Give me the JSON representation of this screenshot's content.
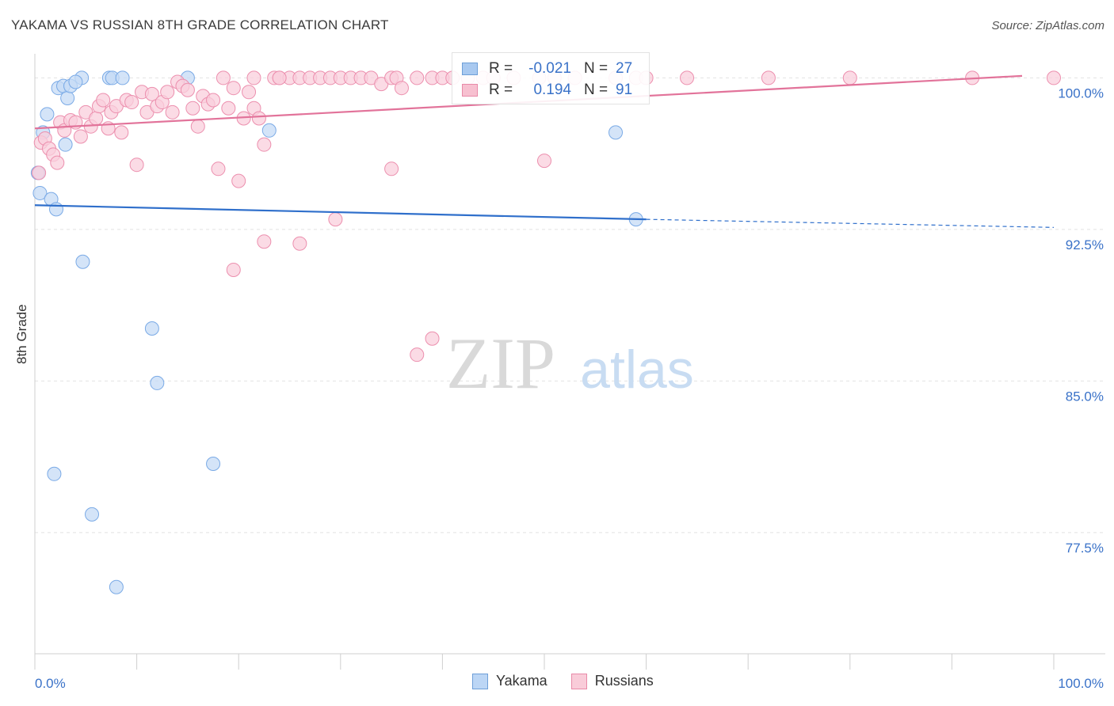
{
  "header": {
    "title": "YAKAMA VS RUSSIAN 8TH GRADE CORRELATION CHART",
    "source": "Source: ZipAtlas.com"
  },
  "watermark": {
    "zip": "ZIP",
    "atlas": "atlas"
  },
  "legend": {
    "rows": [
      {
        "r_label": "R =",
        "r_value": "-0.021",
        "n_label": "N =",
        "n_value": "27",
        "color": "#a9c9f0",
        "border": "#6e9fd8"
      },
      {
        "r_label": "R =",
        "r_value": "0.194",
        "n_label": "N =",
        "n_value": "91",
        "color": "#f7c0d0",
        "border": "#e88aa8"
      }
    ]
  },
  "bottom_legend": [
    {
      "label": "Yakama",
      "color": "#bcd6f5",
      "border": "#6e9fd8"
    },
    {
      "label": "Russians",
      "color": "#f9ccd9",
      "border": "#e88aa8"
    }
  ],
  "chart_data": {
    "type": "scatter",
    "title": "YAKAMA VS RUSSIAN 8TH GRADE CORRELATION CHART",
    "xlabel": "",
    "ylabel": "8th Grade",
    "xlim": [
      0,
      100
    ],
    "ylim": [
      71.5,
      100.8
    ],
    "x_tick_labels": [
      "0.0%",
      "100.0%"
    ],
    "y_ticks": [
      100.0,
      92.5,
      85.0,
      77.5
    ],
    "y_tick_labels": [
      "100.0%",
      "92.5%",
      "85.0%",
      "77.5%"
    ],
    "grid": true,
    "series": [
      {
        "name": "Yakama",
        "color": "#7aaae6",
        "fill": "#c5dbf6",
        "r": -0.021,
        "n": 27,
        "trend": {
          "x0": 0,
          "y0": 93.7,
          "x1": 60,
          "y1": 93.0,
          "dash_to": 100,
          "dash_y": 92.6
        },
        "points": [
          [
            0.3,
            95.3
          ],
          [
            0.5,
            94.3
          ],
          [
            0.8,
            97.3
          ],
          [
            1.2,
            98.2
          ],
          [
            1.6,
            94.0
          ],
          [
            2.1,
            93.5
          ],
          [
            2.3,
            99.5
          ],
          [
            2.8,
            99.6
          ],
          [
            3.2,
            99.0
          ],
          [
            3.5,
            99.6
          ],
          [
            3.0,
            96.7
          ],
          [
            4.6,
            100.0
          ],
          [
            7.3,
            100.0
          ],
          [
            7.6,
            100.0
          ],
          [
            8.6,
            100.0
          ],
          [
            15.0,
            100.0
          ],
          [
            23.0,
            97.4
          ],
          [
            57.0,
            97.3
          ],
          [
            59.0,
            93.0
          ],
          [
            4.7,
            90.9
          ],
          [
            11.5,
            87.6
          ],
          [
            12.0,
            84.9
          ],
          [
            1.9,
            80.4
          ],
          [
            17.5,
            80.9
          ],
          [
            5.6,
            78.4
          ],
          [
            8.0,
            74.8
          ],
          [
            4.0,
            99.8
          ]
        ]
      },
      {
        "name": "Russians",
        "color": "#ec8fae",
        "fill": "#f9cfdc",
        "r": 0.194,
        "n": 91,
        "trend": {
          "x0": 0,
          "y0": 97.5,
          "x1": 100,
          "y1": 100.1
        },
        "points": [
          [
            0.4,
            95.3
          ],
          [
            0.6,
            96.8
          ],
          [
            1.0,
            97.0
          ],
          [
            1.4,
            96.5
          ],
          [
            1.8,
            96.2
          ],
          [
            2.2,
            95.8
          ],
          [
            2.5,
            97.8
          ],
          [
            2.9,
            97.4
          ],
          [
            3.5,
            97.9
          ],
          [
            4.0,
            97.8
          ],
          [
            4.5,
            97.1
          ],
          [
            5.0,
            98.3
          ],
          [
            5.5,
            97.6
          ],
          [
            6.0,
            98.0
          ],
          [
            6.3,
            98.6
          ],
          [
            6.7,
            98.9
          ],
          [
            7.2,
            97.5
          ],
          [
            7.5,
            98.3
          ],
          [
            8.0,
            98.6
          ],
          [
            8.5,
            97.3
          ],
          [
            9.0,
            98.9
          ],
          [
            9.5,
            98.8
          ],
          [
            10.0,
            95.7
          ],
          [
            10.5,
            99.3
          ],
          [
            11.0,
            98.3
          ],
          [
            11.5,
            99.2
          ],
          [
            12.0,
            98.6
          ],
          [
            12.5,
            98.8
          ],
          [
            13.0,
            99.3
          ],
          [
            13.5,
            98.3
          ],
          [
            14.0,
            99.8
          ],
          [
            14.5,
            99.6
          ],
          [
            15.0,
            99.4
          ],
          [
            15.5,
            98.5
          ],
          [
            16.0,
            97.6
          ],
          [
            16.5,
            99.1
          ],
          [
            17.0,
            98.7
          ],
          [
            17.5,
            98.9
          ],
          [
            18.0,
            95.5
          ],
          [
            18.5,
            100.0
          ],
          [
            19.0,
            98.5
          ],
          [
            19.5,
            99.5
          ],
          [
            20.0,
            94.9
          ],
          [
            20.5,
            98.0
          ],
          [
            21.0,
            99.3
          ],
          [
            21.5,
            98.5
          ],
          [
            22.0,
            98.0
          ],
          [
            22.5,
            96.7
          ],
          [
            23.5,
            100.0
          ],
          [
            24.0,
            100.0
          ],
          [
            25.0,
            100.0
          ],
          [
            26.0,
            100.0
          ],
          [
            27.0,
            100.0
          ],
          [
            28.0,
            100.0
          ],
          [
            29.0,
            100.0
          ],
          [
            30.0,
            100.0
          ],
          [
            31.0,
            100.0
          ],
          [
            32.0,
            100.0
          ],
          [
            33.0,
            100.0
          ],
          [
            34.0,
            99.7
          ],
          [
            35.0,
            100.0
          ],
          [
            35.5,
            100.0
          ],
          [
            36.0,
            99.5
          ],
          [
            37.5,
            100.0
          ],
          [
            39.0,
            100.0
          ],
          [
            40.0,
            100.0
          ],
          [
            41.0,
            100.0
          ],
          [
            42.5,
            100.0
          ],
          [
            44.0,
            100.0
          ],
          [
            45.0,
            100.0
          ],
          [
            47.0,
            100.0
          ],
          [
            49.5,
            100.0
          ],
          [
            51.0,
            100.0
          ],
          [
            53.0,
            100.0
          ],
          [
            57.0,
            100.0
          ],
          [
            59.0,
            100.0
          ],
          [
            64.0,
            100.0
          ],
          [
            72.0,
            100.0
          ],
          [
            80.0,
            100.0
          ],
          [
            92.0,
            100.0
          ],
          [
            100.0,
            100.0
          ],
          [
            35.0,
            95.5
          ],
          [
            50.0,
            95.9
          ],
          [
            29.5,
            93.0
          ],
          [
            22.5,
            91.9
          ],
          [
            26.0,
            91.8
          ],
          [
            19.5,
            90.5
          ],
          [
            39.0,
            87.1
          ],
          [
            37.5,
            86.3
          ],
          [
            21.5,
            100.0
          ],
          [
            24.0,
            100.0
          ],
          [
            60.0,
            100.0
          ]
        ]
      }
    ]
  }
}
